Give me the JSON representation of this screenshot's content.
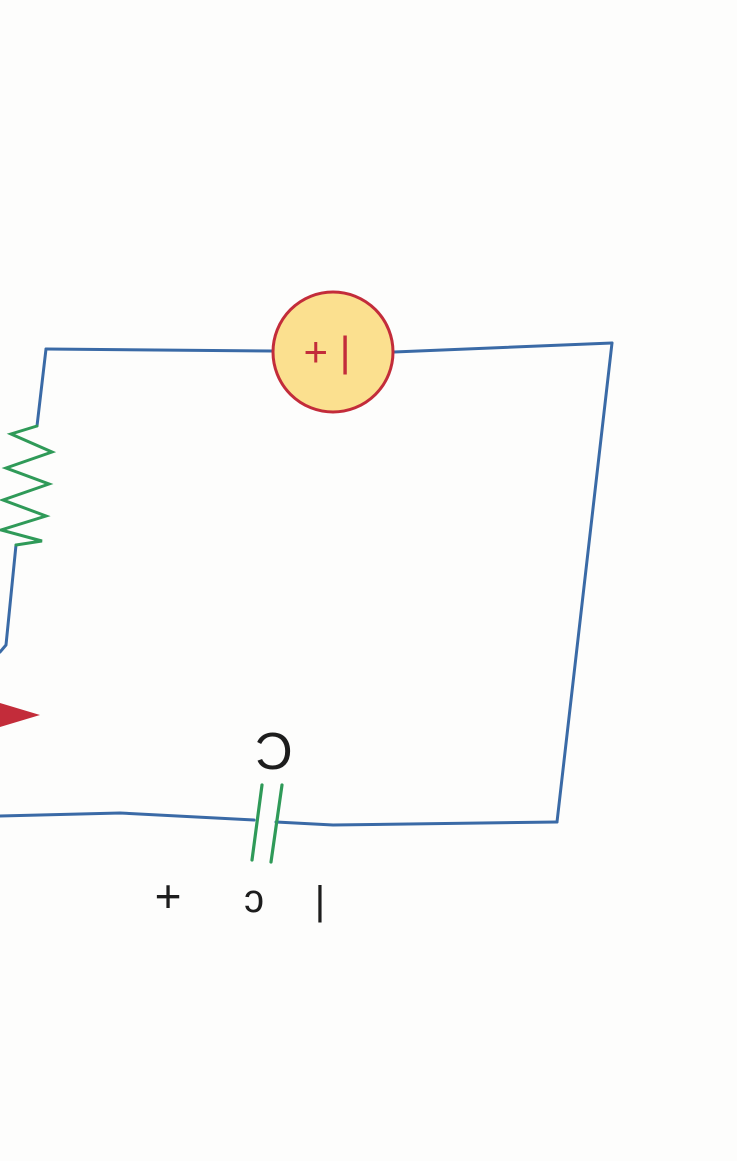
{
  "colors": {
    "background": "#fdfdfc",
    "wire": "#3a6aa6",
    "resistor": "#2f9a58",
    "capacitor": "#2f9a58",
    "source_fill": "#fbe08f",
    "source_stroke": "#c32c3a",
    "source_text": "#c32c3a",
    "arrow": "#c32c3a",
    "label_text": "#1d1d1d"
  },
  "icons": {
    "resistor": "resistor-zigzag-icon",
    "source": "voltage-source-icon",
    "capacitor": "capacitor-icon",
    "arrow": "current-arrow-icon"
  },
  "source": {
    "label": "+ |"
  },
  "capacitor": {
    "label": "C"
  },
  "bottom_labels": {
    "plus": "+",
    "middle": "ɔ",
    "minus": "|"
  }
}
